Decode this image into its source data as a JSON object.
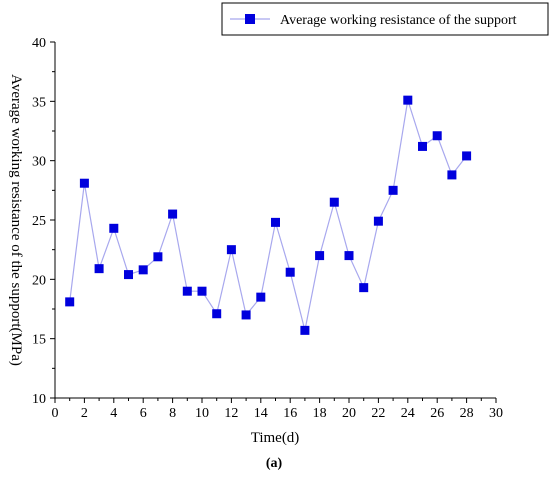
{
  "chart_data": {
    "type": "line",
    "title": "",
    "xlabel": "Time(d)",
    "ylabel": "Average working resistance of the support(MPa)",
    "xlim": [
      0,
      30
    ],
    "ylim": [
      10,
      40
    ],
    "xticks": [
      0,
      2,
      4,
      6,
      8,
      10,
      12,
      14,
      16,
      18,
      20,
      22,
      24,
      26,
      28,
      30
    ],
    "yticks": [
      10,
      15,
      20,
      25,
      30,
      35,
      40
    ],
    "grid": false,
    "legend_position": "top-right",
    "caption": "(a)",
    "series": [
      {
        "name": "Average working resistance of the support",
        "line_color": "#a8a8ee",
        "marker_color": "#0000dd",
        "marker": "square",
        "x": [
          1,
          2,
          3,
          4,
          5,
          6,
          7,
          8,
          9,
          10,
          11,
          12,
          13,
          14,
          15,
          16,
          17,
          18,
          19,
          20,
          21,
          22,
          23,
          24,
          25,
          26,
          27,
          28
        ],
        "y": [
          18.1,
          28.1,
          20.9,
          24.3,
          20.4,
          20.8,
          21.9,
          25.5,
          19.0,
          19.0,
          17.1,
          22.5,
          17.0,
          18.5,
          24.8,
          20.6,
          15.7,
          22.0,
          26.5,
          22.0,
          19.3,
          24.9,
          27.5,
          35.1,
          31.2,
          32.1,
          28.8,
          30.4
        ]
      }
    ]
  }
}
